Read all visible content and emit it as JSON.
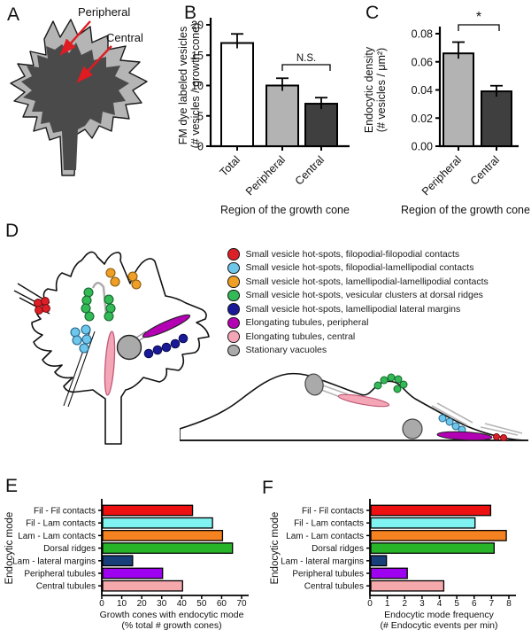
{
  "panels": {
    "a": "A",
    "b": "B",
    "c": "C",
    "d": "D",
    "e": "E",
    "f": "F"
  },
  "panelA": {
    "peripheral_label": "Peripheral",
    "central_label": "Central",
    "colors": {
      "outer": "#b5b5b5",
      "inner": "#4a4a4a",
      "arrow": "#e01b22",
      "outline": "#1a1a1a"
    }
  },
  "palette": {
    "red": "#dd2027",
    "skyblue": "#6ec6ea",
    "orange": "#ef9f26",
    "green": "#33b955",
    "navy": "#1a1a99",
    "magenta": "#b300b3",
    "pink": "#f4a6b6",
    "gray": "#aaaaaa"
  },
  "panelD": {
    "legend": [
      {
        "color_key": "red",
        "label": "Small vesicle hot-spots, filopodial-filopodial contacts"
      },
      {
        "color_key": "skyblue",
        "label": "Small vesicle hot-spots, filopodial-lamellipodial contacts"
      },
      {
        "color_key": "orange",
        "label": "Small vesicle hot-spots, lamellipodial-lamellipodial contacts"
      },
      {
        "color_key": "green",
        "label": "Small vesicle hot-spots, vesicular clusters at dorsal ridges"
      },
      {
        "color_key": "navy",
        "label": "Small vesicle hot-spots, lamellipodial lateral margins"
      },
      {
        "color_key": "magenta",
        "label": "Elongating tubules, peripheral"
      },
      {
        "color_key": "pink",
        "label": "Elongating tubules, central"
      },
      {
        "color_key": "gray",
        "label": "Stationary vacuoles"
      }
    ]
  },
  "chart_data": [
    {
      "id": "B",
      "type": "bar",
      "categories": [
        "Total",
        "Peripheral",
        "Central"
      ],
      "values": [
        17,
        10,
        7
      ],
      "errors": [
        1.5,
        1.2,
        1.0
      ],
      "bar_colors": [
        "#ffffff",
        "#b3b3b3",
        "#3f3f3f"
      ],
      "ylim": [
        0,
        20
      ],
      "yticks": [
        0,
        5,
        10,
        15,
        20
      ],
      "ytick_labels": [
        "0",
        "5",
        "10",
        "15",
        "20"
      ],
      "ylabel_line1": "FM dye labeled vesicles",
      "ylabel_line2": "(# vesicles / growth cone)",
      "xlabel": "Region of the growth cone",
      "significance": {
        "label": "N.S.",
        "from": 1,
        "to": 2
      }
    },
    {
      "id": "C",
      "type": "bar",
      "categories": [
        "Peripheral",
        "Central"
      ],
      "values": [
        0.066,
        0.039
      ],
      "errors": [
        0.008,
        0.004
      ],
      "bar_colors": [
        "#b3b3b3",
        "#3f3f3f"
      ],
      "ylim": [
        0,
        0.08
      ],
      "yticks": [
        0,
        0.02,
        0.04,
        0.06,
        0.08
      ],
      "ytick_labels": [
        "0.00",
        "0.02",
        "0.04",
        "0.06",
        "0.08"
      ],
      "ylabel_line1": "Endocytic density",
      "ylabel_line2": "(# vesicles / μm²)",
      "xlabel": "Region of the growth cone",
      "significance": {
        "label": "*",
        "from": 0,
        "to": 1
      }
    },
    {
      "id": "E",
      "type": "bar-horizontal",
      "categories": [
        "Fil - Fil contacts",
        "Fil - Lam contacts",
        "Lam - Lam contacts",
        "Dorsal ridges",
        "Lam - lateral margins",
        "Peripheral tubules",
        "Central tubules"
      ],
      "values": [
        45,
        55,
        60,
        65,
        15,
        30,
        40
      ],
      "bar_colors": [
        "#ee1111",
        "#80f2f2",
        "#f58220",
        "#28b428",
        "#173f7a",
        "#9e00f0",
        "#f5a9ad"
      ],
      "xlim": [
        0,
        70
      ],
      "xticks": [
        0,
        10,
        20,
        30,
        40,
        50,
        60,
        70
      ],
      "xtick_labels": [
        "0",
        "10",
        "20",
        "30",
        "40",
        "50",
        "60",
        "70"
      ],
      "xlabel_line1": "Growth cones with endocytic mode",
      "xlabel_line2": "(% total # growth cones)",
      "ylabel": "Endocytic mode"
    },
    {
      "id": "F",
      "type": "bar-horizontal",
      "categories": [
        "Fil - Fil contacts",
        "Fil - Lam contacts",
        "Lam - Lam contacts",
        "Dorsal ridges",
        "Lam - lateral margins",
        "Peripheral tubules",
        "Central tubules"
      ],
      "values": [
        6.9,
        6.0,
        7.8,
        7.1,
        0.9,
        2.1,
        4.2
      ],
      "bar_colors": [
        "#ee1111",
        "#80f2f2",
        "#f58220",
        "#28b428",
        "#173f7a",
        "#9e00f0",
        "#f5a9ad"
      ],
      "xlim": [
        0,
        8
      ],
      "xticks": [
        0,
        1,
        2,
        3,
        4,
        5,
        6,
        7,
        8
      ],
      "xtick_labels": [
        "0",
        "1",
        "2",
        "3",
        "4",
        "5",
        "6",
        "7",
        "8"
      ],
      "xlabel_line1": "Endocytic mode frequency",
      "xlabel_line2": "(# Endocytic events per min)",
      "ylabel": "Endocytic mode"
    }
  ]
}
